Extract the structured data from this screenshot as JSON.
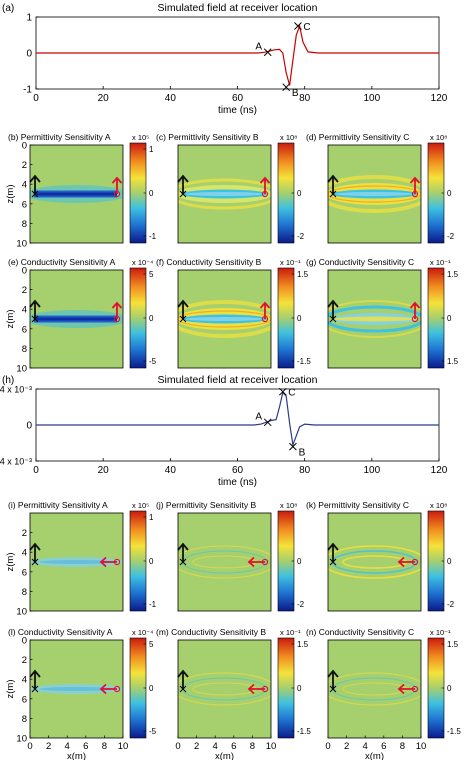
{
  "chart_data": [
    {
      "id": "a",
      "type": "line",
      "panel_label": "(a)",
      "title": "Simulated field at receiver location",
      "xlabel": "time (ns)",
      "ylabel": "",
      "xlim": [
        0,
        120
      ],
      "ylim": [
        -1,
        1
      ],
      "xticks": [
        "0",
        "20",
        "40",
        "60",
        "80",
        "100",
        "120"
      ],
      "yticks": [
        "1",
        "0",
        "-1"
      ],
      "exponent": "",
      "line_color": "#cc0000",
      "series": [
        {
          "x": [
            0,
            60,
            66,
            68,
            69.5,
            71,
            72.5,
            73.5,
            74.5,
            75.5,
            76.5,
            77.5,
            78.5,
            79.5,
            81,
            84,
            120
          ],
          "y": [
            0,
            0,
            0,
            0.02,
            0.05,
            0.09,
            0.1,
            0,
            -0.55,
            -0.9,
            -0.2,
            0.5,
            0.75,
            0.3,
            0.03,
            0,
            0
          ]
        }
      ],
      "markers": [
        {
          "label": "A",
          "x": 69,
          "y": 0.02
        },
        {
          "label": "B",
          "x": 74.5,
          "y": -0.95
        },
        {
          "label": "C",
          "x": 78,
          "y": 0.75
        }
      ]
    },
    {
      "id": "h",
      "type": "line",
      "panel_label": "(h)",
      "title": "Simulated field at receiver location",
      "xlabel": "time (ns)",
      "ylabel": "",
      "xlim": [
        0,
        120
      ],
      "ylim": [
        -0.004,
        0.004
      ],
      "xticks": [
        "0",
        "20",
        "40",
        "60",
        "80",
        "100",
        "120"
      ],
      "yticks": [
        "4 x 10⁻³",
        "0",
        "-4 x 10⁻³"
      ],
      "exponent": "",
      "line_color": "#2a3a8c",
      "series": [
        {
          "x": [
            0,
            60,
            65,
            67,
            68.5,
            70,
            71.5,
            72.5,
            73.5,
            74.5,
            75.5,
            76.5,
            77.5,
            78.5,
            80,
            83,
            120
          ],
          "y": [
            0,
            0,
            0,
            0.0001,
            0.0003,
            0.0005,
            0.0006,
            0.002,
            0.0036,
            0.0032,
            0.0002,
            -0.0022,
            -0.0012,
            -0.0002,
            0.0001,
            0,
            0
          ]
        }
      ],
      "markers": [
        {
          "label": "A",
          "x": 69,
          "y": 0.0003
        },
        {
          "label": "C",
          "x": 73.5,
          "y": 0.0037
        },
        {
          "label": "B",
          "x": 76.5,
          "y": -0.0024
        }
      ]
    },
    {
      "id": "b",
      "type": "heatmap",
      "panel_label": "(b) Permittivity Sensitivity A",
      "exponent": "x 10⁵",
      "cbar_ticks": [
        "1",
        "0",
        "-1"
      ],
      "style": "flat-blue",
      "ylabel": "z(m)",
      "yticks": [
        "0",
        "2",
        "4",
        "6",
        "8",
        "10"
      ],
      "xlabel": "",
      "xticks": []
    },
    {
      "id": "c",
      "type": "heatmap",
      "panel_label": "(c) Permittivity Sensitivity B",
      "exponent": "x 10⁸",
      "cbar_ticks": [
        "0",
        "-2"
      ],
      "style": "ellipse-yellow",
      "ylabel": "",
      "yticks": [],
      "xlabel": "",
      "xticks": []
    },
    {
      "id": "d",
      "type": "heatmap",
      "panel_label": "(d) Permittivity Sensitivity C",
      "exponent": "x 10⁸",
      "cbar_ticks": [
        "0",
        "-2"
      ],
      "style": "ellipse-yellow-strong",
      "ylabel": "",
      "yticks": [],
      "xlabel": "",
      "xticks": []
    },
    {
      "id": "e",
      "type": "heatmap",
      "panel_label": "(e) Conductivity Sensitivity A",
      "exponent": "x 10⁻⁴",
      "cbar_ticks": [
        "5",
        "0",
        "-5"
      ],
      "style": "flat-blue",
      "ylabel": "z(m)",
      "yticks": [
        "0",
        "2",
        "4",
        "6",
        "8",
        "10"
      ],
      "xlabel": "",
      "xticks": []
    },
    {
      "id": "f",
      "type": "heatmap",
      "panel_label": "(f) Conductivity Sensitivity B",
      "exponent": "x 10⁻¹",
      "cbar_ticks": [
        "1.5",
        "0",
        "-1.5"
      ],
      "style": "ellipse-yellow-strong",
      "ylabel": "",
      "yticks": [],
      "xlabel": "",
      "xticks": []
    },
    {
      "id": "g",
      "type": "heatmap",
      "panel_label": "(g) Conductivity Sensitivity C",
      "exponent": "x 10⁻¹",
      "cbar_ticks": [
        "1.5",
        "0",
        "1.5"
      ],
      "style": "ellipse-blue-rings",
      "ylabel": "",
      "yticks": [],
      "xlabel": "",
      "xticks": []
    },
    {
      "id": "i",
      "type": "heatmap",
      "panel_label": "(i) Permittivity Sensitivity A",
      "exponent": "x 10⁵",
      "cbar_ticks": [
        "1",
        "0",
        "-1"
      ],
      "style": "faint-blue",
      "ylabel": "z(m)",
      "yticks": [
        "2",
        "4",
        "6",
        "8",
        "10"
      ],
      "xlabel": "",
      "xticks": []
    },
    {
      "id": "j",
      "type": "heatmap",
      "panel_label": "(j) Permittivity Sensitivity B",
      "exponent": "x 10⁸",
      "cbar_ticks": [
        "0",
        "-2"
      ],
      "style": "faint-rings",
      "ylabel": "",
      "yticks": [],
      "xlabel": "",
      "xticks": []
    },
    {
      "id": "k",
      "type": "heatmap",
      "panel_label": "(k) Permittivity Sensitivity C",
      "exponent": "x 10⁸",
      "cbar_ticks": [
        "0",
        "-2"
      ],
      "style": "faint-rings-strong",
      "ylabel": "",
      "yticks": [],
      "xlabel": "",
      "xticks": []
    },
    {
      "id": "l",
      "type": "heatmap",
      "panel_label": "(l) Conductivity Sensitivity A",
      "exponent": "x 10⁻⁴",
      "cbar_ticks": [
        "5",
        "0",
        "-5"
      ],
      "style": "faint-blue",
      "ylabel": "z(m)",
      "yticks": [
        "0",
        "2",
        "4",
        "6",
        "8",
        "10"
      ],
      "xlabel": "x(m)",
      "xticks": [
        "0",
        "2",
        "4",
        "6",
        "8",
        "10"
      ]
    },
    {
      "id": "m",
      "type": "heatmap",
      "panel_label": "(m) Conductivity Sensitivity B",
      "exponent": "x 10⁻¹",
      "cbar_ticks": [
        "1.5",
        "0",
        "-1.5"
      ],
      "style": "faint-rings",
      "ylabel": "",
      "yticks": [],
      "xlabel": "x(m)",
      "xticks": [
        "0",
        "2",
        "4",
        "6",
        "8",
        "10"
      ]
    },
    {
      "id": "n",
      "type": "heatmap",
      "panel_label": "(n) Conductivity Sensitivity C",
      "exponent": "x 10⁻¹",
      "cbar_ticks": [
        "1.5",
        "0",
        "-1.5"
      ],
      "style": "faint-rings",
      "ylabel": "",
      "yticks": [],
      "xlabel": "x(m)",
      "xticks": [
        "0",
        "2",
        "4",
        "6",
        "8",
        "10"
      ]
    }
  ],
  "colors": {
    "background_field": "#a6cf6e",
    "colorbar_stops": [
      "#0b1a8c",
      "#1e73d2",
      "#3fc1e0",
      "#a6cf6e",
      "#f5e23a",
      "#f08a1e",
      "#cc1a10"
    ],
    "arrow_source": "#111111",
    "arrow_receiver": "#e01030"
  }
}
